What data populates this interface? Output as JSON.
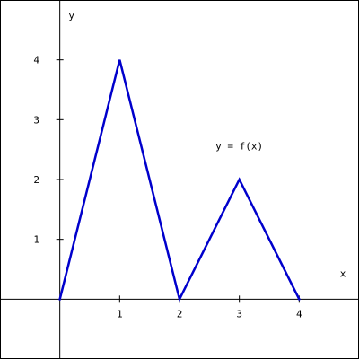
{
  "chart_data": {
    "type": "line",
    "xlabel": "x",
    "ylabel": "y",
    "xlim": [
      -1,
      5
    ],
    "ylim": [
      -1,
      5
    ],
    "x_ticks": [
      1,
      2,
      3,
      4
    ],
    "y_ticks": [
      1,
      2,
      3,
      4
    ],
    "grid": false,
    "series": [
      {
        "name": "y = f(x)",
        "color": "#0000cc",
        "x": [
          0,
          1,
          2,
          3,
          4
        ],
        "y": [
          0,
          4,
          0,
          2,
          0
        ]
      }
    ],
    "annotations": [
      {
        "text": "y = f(x)",
        "x": 3,
        "y": 2.5
      }
    ]
  }
}
